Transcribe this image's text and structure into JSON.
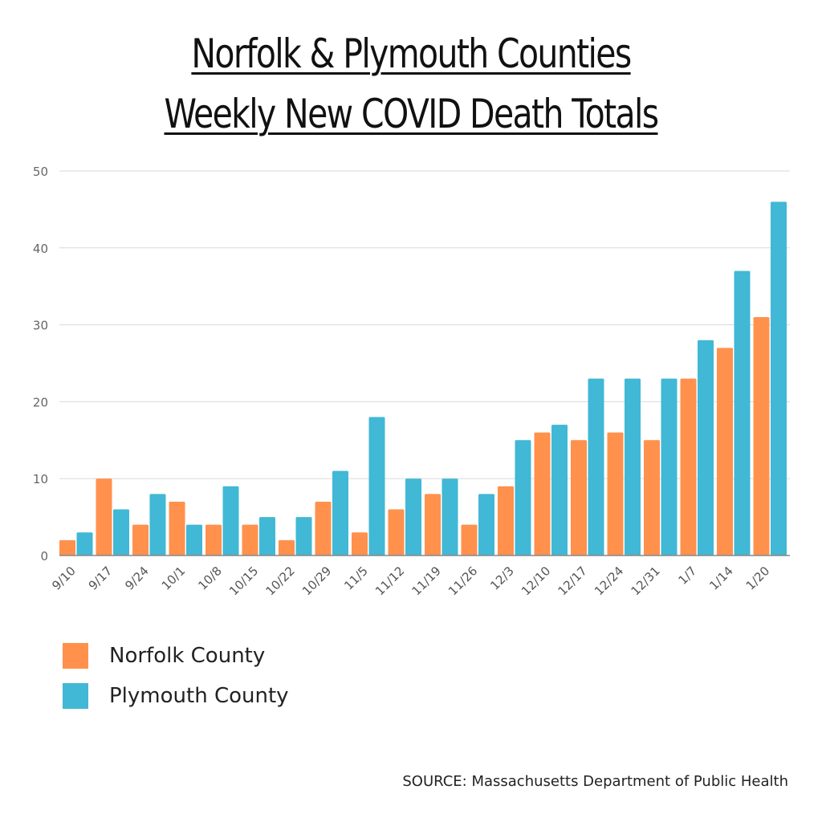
{
  "chart_data": {
    "type": "bar",
    "title_line1": "Norfolk & Plymouth Counties",
    "title_line2": "Weekly New COVID Death Totals",
    "xlabel": "",
    "ylabel": "",
    "ylim": [
      0,
      50
    ],
    "yticks": [
      "0",
      "10",
      "20",
      "30",
      "40",
      "50"
    ],
    "grid": true,
    "legend_placement": "bottom-left",
    "categories": [
      "9/10",
      "9/17",
      "9/24",
      "10/1",
      "10/8",
      "10/15",
      "10/22",
      "10/29",
      "11/5",
      "11/12",
      "11/19",
      "11/26",
      "12/3",
      "12/10",
      "12/17",
      "12/24",
      "12/31",
      "1/7",
      "1/14",
      "1/20"
    ],
    "series": [
      {
        "name": "Norfolk County",
        "color": "#FF914D",
        "values": [
          2,
          10,
          4,
          7,
          4,
          4,
          2,
          7,
          3,
          6,
          8,
          4,
          9,
          16,
          15,
          16,
          15,
          23,
          27,
          31
        ]
      },
      {
        "name": "Plymouth County",
        "color": "#41B8D5",
        "values": [
          3,
          6,
          8,
          4,
          9,
          5,
          5,
          11,
          18,
          10,
          10,
          8,
          15,
          17,
          23,
          23,
          23,
          28,
          37,
          46
        ]
      }
    ],
    "source": "SOURCE: Massachusetts Department of Public Health"
  }
}
